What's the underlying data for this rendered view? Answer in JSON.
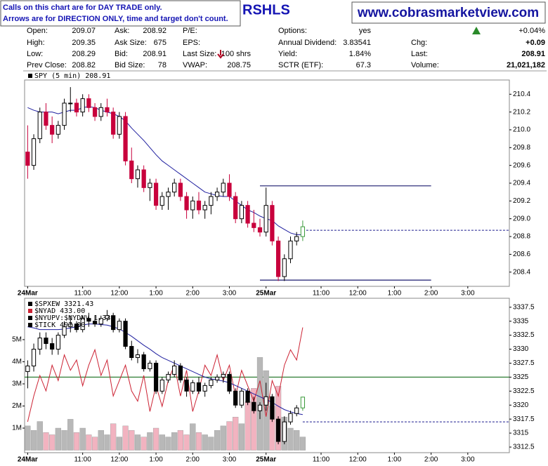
{
  "header": {
    "note": [
      "Calls on this chart are for DAY TRADE only.",
      "Arrows are for DIRECTION ONLY, time and target don't count."
    ],
    "title": "RSHLS",
    "site": "www.cobrasmarketview.com",
    "stats": [
      [
        [
          "Open:",
          "209.07"
        ],
        [
          "Ask:",
          "208.92"
        ],
        [
          "P/E:"
        ],
        [
          "Options:",
          "yes"
        ],
        [
          "+0.04%"
        ]
      ],
      [
        [
          "High:",
          "209.35"
        ],
        [
          "Ask Size:",
          "675"
        ],
        [
          "EPS:"
        ],
        [
          "Annual Dividend:",
          "3.83541"
        ],
        [
          "Chg:",
          "+0.09"
        ]
      ],
      [
        [
          "Low:",
          "208.29"
        ],
        [
          "Bid:",
          "208.91"
        ],
        [
          "Last Size:",
          "100 shrs"
        ],
        [
          "Yield:",
          "1.84%"
        ],
        [
          "Last:",
          "208.91"
        ]
      ],
      [
        [
          "Prev Close:",
          "208.82"
        ],
        [
          "Bid Size:",
          "78"
        ],
        [
          "VWAP:",
          "208.75"
        ],
        [
          "SCTR (ETF):",
          "67.3"
        ],
        [
          "Volume:",
          "21,021,182"
        ]
      ]
    ]
  },
  "chart_data": [
    {
      "type": "candlestick",
      "xlim": [
        -0.5,
        78.8
      ],
      "xticks": [
        {
          "value": 0,
          "label": "24Mar"
        },
        {
          "value": 9,
          "label": "11:00"
        },
        {
          "value": 15,
          "label": "12:00"
        },
        {
          "value": 21,
          "label": "1:00"
        },
        {
          "value": 27,
          "label": "2:00"
        },
        {
          "value": 33,
          "label": "3:00"
        },
        {
          "value": 39,
          "label": "25Mar"
        },
        {
          "value": 48,
          "label": "11:00"
        },
        {
          "value": 54,
          "label": "12:00"
        },
        {
          "value": 60,
          "label": "1:00"
        },
        {
          "value": 66,
          "label": "2:00"
        },
        {
          "value": 72,
          "label": "3:00"
        }
      ],
      "ylim": [
        208.24,
        210.56
      ],
      "yticks": [
        {
          "value": 208.4,
          "label": "208.4"
        },
        {
          "value": 208.6,
          "label": "208.6"
        },
        {
          "value": 208.8,
          "label": "208.8"
        },
        {
          "value": 209,
          "label": "209.0"
        },
        {
          "value": 209.2,
          "label": "209.2"
        },
        {
          "value": 209.4,
          "label": "209.4"
        },
        {
          "value": 209.6,
          "label": "209.6"
        },
        {
          "value": 209.8,
          "label": "209.8"
        },
        {
          "value": 210,
          "label": "210.0"
        },
        {
          "value": 210.2,
          "label": "210.2"
        },
        {
          "value": 210.4,
          "label": "210.4"
        }
      ],
      "series": [
        {
          "type": "candlestick",
          "name": "SPY (5 min) 208.91",
          "up_color": "#000000",
          "down_color": "#c8003c",
          "last_color": "#3a9a3a",
          "open": [
            209.75,
            209.6,
            209.9,
            210.2,
            210.05,
            209.95,
            210.05,
            210.3,
            210.3,
            210.2,
            210.35,
            210.25,
            210.15,
            210.25,
            210.2,
            209.95,
            210.15,
            209.65,
            209.45,
            209.55,
            209.35,
            209.4,
            209.15,
            209.25,
            209.3,
            209.4,
            209.25,
            209.1,
            209.2,
            209.1,
            209.15,
            209.25,
            209.3,
            209.4,
            209.25,
            209.0,
            209.15,
            208.95,
            208.9,
            208.85,
            209.15,
            208.75,
            208.35,
            208.55,
            208.75,
            208.8
          ],
          "high": [
            210.05,
            209.95,
            210.25,
            210.3,
            210.15,
            210.1,
            210.35,
            210.48,
            210.35,
            210.4,
            210.4,
            210.3,
            210.3,
            210.35,
            210.25,
            210.2,
            210.2,
            209.8,
            209.6,
            209.6,
            209.45,
            209.45,
            209.3,
            209.35,
            209.45,
            209.45,
            209.3,
            209.25,
            209.3,
            209.2,
            209.3,
            209.35,
            209.45,
            209.5,
            209.3,
            209.2,
            209.2,
            209.1,
            209.0,
            209.35,
            209.2,
            208.8,
            208.6,
            208.8,
            208.85,
            208.98
          ],
          "low": [
            209.45,
            209.55,
            209.85,
            210.0,
            209.85,
            209.9,
            210.0,
            210.2,
            210.15,
            210.15,
            210.2,
            210.1,
            210.1,
            210.15,
            209.9,
            209.9,
            209.6,
            209.4,
            209.35,
            209.3,
            209.2,
            209.1,
            209.1,
            209.1,
            209.25,
            209.2,
            209.0,
            209.0,
            209.05,
            209.0,
            209.05,
            209.2,
            209.25,
            209.2,
            208.95,
            208.95,
            208.9,
            208.85,
            208.8,
            208.8,
            208.7,
            208.3,
            208.3,
            208.5,
            208.7,
            208.75
          ],
          "close": [
            209.6,
            209.9,
            210.2,
            210.05,
            209.95,
            210.05,
            210.3,
            210.3,
            210.2,
            210.35,
            210.25,
            210.15,
            210.25,
            210.2,
            209.95,
            210.15,
            209.65,
            209.45,
            209.55,
            209.35,
            209.4,
            209.15,
            209.25,
            209.3,
            209.4,
            209.25,
            209.1,
            209.2,
            209.1,
            209.15,
            209.25,
            209.3,
            209.4,
            209.25,
            209.0,
            209.15,
            208.95,
            208.9,
            208.85,
            209.15,
            208.75,
            208.35,
            208.55,
            208.75,
            208.8,
            208.91
          ]
        },
        {
          "type": "line",
          "color": "#1f1f9f",
          "values": [
            210.25,
            210.22,
            210.2,
            210.2,
            210.2,
            210.18,
            210.2,
            210.22,
            210.22,
            210.25,
            210.26,
            210.25,
            210.22,
            210.2,
            210.18,
            210.15,
            210.1,
            210.02,
            209.95,
            209.88,
            209.8,
            209.72,
            209.65,
            209.6,
            209.55,
            209.5,
            209.45,
            209.4,
            209.35,
            209.3,
            209.28,
            209.26,
            209.25,
            209.25,
            209.2,
            209.15,
            209.1,
            209.07,
            209.03,
            209.0,
            208.98,
            208.92,
            208.88,
            208.84,
            208.82,
            208.82
          ]
        }
      ],
      "levels": [
        {
          "value": 209.37,
          "x": [
            38,
            66
          ],
          "color": "#1a1a6e"
        },
        {
          "value": 208.31,
          "x": [
            38,
            66
          ],
          "color": "#1a1a6e"
        }
      ],
      "price_line": 208.87
    },
    {
      "type": "candlestick",
      "xlim": [
        -0.5,
        78.8
      ],
      "xticks": [
        {
          "value": 0,
          "label": "24Mar"
        },
        {
          "value": 9,
          "label": "11:00"
        },
        {
          "value": 15,
          "label": "12:00"
        },
        {
          "value": 21,
          "label": "1:00"
        },
        {
          "value": 27,
          "label": "2:00"
        },
        {
          "value": 33,
          "label": "3:00"
        },
        {
          "value": 39,
          "label": "25Mar"
        },
        {
          "value": 48,
          "label": "11:00"
        },
        {
          "value": 54,
          "label": "12:00"
        },
        {
          "value": 60,
          "label": "1:00"
        },
        {
          "value": 66,
          "label": "2:00"
        },
        {
          "value": 72,
          "label": "3:00"
        }
      ],
      "ylim": [
        3311.5,
        3339.1
      ],
      "yticks": [
        3312.5,
        3315,
        3317.5,
        3320,
        3322.5,
        3325,
        3327.5,
        3330,
        3332.5,
        3335,
        3337.5
      ],
      "y2lim": [
        -110000,
        6870000
      ],
      "y2ticks": [
        {
          "value": 1000000,
          "label": "1M"
        },
        {
          "value": 2000000,
          "label": "2M"
        },
        {
          "value": 3000000,
          "label": "3M"
        },
        {
          "value": 4000000,
          "label": "4M"
        },
        {
          "value": 5000000,
          "label": "5M"
        }
      ],
      "y3lim": [
        -2000,
        1000
      ],
      "series": [
        {
          "type": "candlestick",
          "name": "$SPXEW 3321.43",
          "up_color": "#000000",
          "down_color": "#000000",
          "last_color": "#3a9a3a",
          "open": [
            3326,
            3327,
            3330,
            3332,
            3331,
            3330,
            3332.5,
            3334,
            3334.5,
            3333.5,
            3335.5,
            3335,
            3334.5,
            3335.5,
            3336,
            3333.5,
            3335,
            3330.5,
            3328.5,
            3329,
            3326.5,
            3327.5,
            3322.5,
            3324.5,
            3325.5,
            3327,
            3324.5,
            3322.5,
            3324,
            3322.5,
            3323.5,
            3324.5,
            3325,
            3325.5,
            3322.5,
            3320,
            3322.5,
            3320.5,
            3319,
            3320,
            3321.5,
            3317.5,
            3313.5,
            3317,
            3318.5,
            3319.5
          ],
          "high": [
            3328,
            3331,
            3333,
            3333,
            3332,
            3333,
            3335,
            3336,
            3335,
            3336,
            3336.5,
            3336,
            3336,
            3337,
            3336.5,
            3335.5,
            3335.5,
            3331.5,
            3330,
            3329.5,
            3328,
            3328,
            3325,
            3326,
            3328,
            3327.5,
            3325,
            3324.5,
            3325,
            3324,
            3325,
            3325.5,
            3326,
            3326,
            3323,
            3323,
            3323,
            3321.5,
            3320.5,
            3324,
            3322,
            3318,
            3318,
            3319,
            3320,
            3321.5
          ],
          "low": [
            3323,
            3326,
            3329,
            3330,
            3329,
            3329,
            3332,
            3333,
            3333,
            3333,
            3334,
            3334,
            3334,
            3335,
            3333,
            3333,
            3330,
            3328,
            3327.5,
            3326,
            3326,
            3322,
            3322,
            3324,
            3325,
            3324,
            3321.5,
            3322,
            3322,
            3321.5,
            3323,
            3324,
            3324,
            3322,
            3319.5,
            3319.5,
            3320,
            3318.5,
            3317.5,
            3319,
            3317,
            3313,
            3313,
            3316.5,
            3318,
            3319
          ],
          "close": [
            3327,
            3330,
            3332,
            3331,
            3330,
            3332.5,
            3334,
            3334.5,
            3333.5,
            3335.5,
            3335,
            3334.5,
            3335.5,
            3336,
            3333.5,
            3335,
            3330.5,
            3328.5,
            3329,
            3326.5,
            3327.5,
            3322.5,
            3324.5,
            3325.5,
            3327,
            3324.5,
            3322.5,
            3324,
            3322.5,
            3323.5,
            3324.5,
            3325,
            3325.5,
            3322.5,
            3320,
            3322.5,
            3320.5,
            3319,
            3320,
            3321.5,
            3317.5,
            3313.5,
            3317,
            3318.5,
            3319.5,
            3321.43
          ]
        },
        {
          "type": "line",
          "name": "$NYAD 433.00",
          "axis": "y3",
          "color": "#cc2233",
          "values": [
            -1400,
            -900,
            -500,
            -800,
            -300,
            -600,
            -100,
            -400,
            -200,
            -700,
            -300,
            0,
            -500,
            -200,
            -900,
            -600,
            -300,
            -800,
            -1000,
            -500,
            -1200,
            -700,
            -1100,
            -600,
            -300,
            -900,
            -400,
            -1200,
            -800,
            -300,
            -500,
            -100,
            -600,
            -300,
            -900,
            -400,
            -700,
            -1000,
            -600,
            -1300,
            -600,
            -900,
            -300,
            0,
            -200,
            433
          ]
        },
        {
          "type": "line",
          "color": "#1f1f9f",
          "values": [
            3334,
            3333.8,
            3333.5,
            3333.5,
            3333.5,
            3333.5,
            3333.6,
            3333.8,
            3334,
            3334.3,
            3334.5,
            3334.5,
            3334.4,
            3334.3,
            3334,
            3333.6,
            3333,
            3332.3,
            3331.5,
            3330.7,
            3330,
            3329.2,
            3328.5,
            3328,
            3327.5,
            3327,
            3326.5,
            3326,
            3325.5,
            3325,
            3324.7,
            3324.5,
            3324.3,
            3324,
            3323.5,
            3323,
            3322.5,
            3322,
            3321.5,
            3321,
            3320.5,
            3319.8,
            3319.2,
            3318.8,
            3318.5,
            3318.3
          ]
        },
        {
          "type": "bar",
          "axis": "y2",
          "up_color": "#b8b8b8",
          "down_color": "#f2b3c0",
          "values": [
            1100000,
            900000,
            1300000,
            800000,
            700000,
            1000000,
            900000,
            1400000,
            800000,
            1000000,
            700000,
            600000,
            900000,
            700000,
            1200000,
            600000,
            1100000,
            900000,
            700000,
            600000,
            800000,
            1000000,
            700000,
            600000,
            800000,
            900000,
            700000,
            1200000,
            800000,
            700000,
            600000,
            900000,
            1100000,
            1300000,
            1500000,
            1200000,
            2200000,
            2800000,
            4200000,
            3600000,
            2000000,
            2900000,
            1500000,
            1000000,
            900000,
            600000
          ]
        }
      ],
      "legend_extra": [
        "$NYUPV:$NYDNV 1.33",
        "$TICK 497.00"
      ],
      "levels": [
        {
          "value": 3325,
          "color": "#2e7d32"
        }
      ],
      "price_line": 3317.0
    }
  ]
}
